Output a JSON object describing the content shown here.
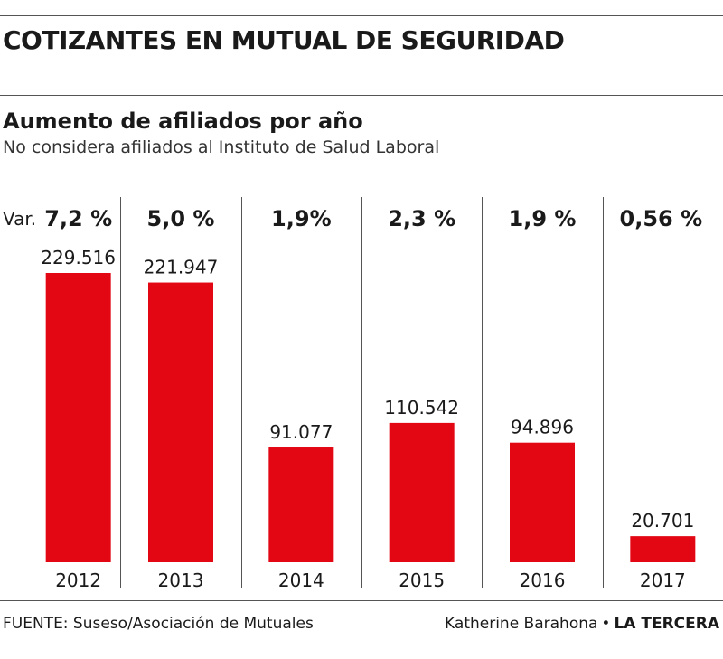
{
  "header": {
    "title": "COTIZANTES EN MUTUAL DE SEGURIDAD",
    "subtitle": "Aumento de afiliados por año",
    "note": "No considera afiliados al Instituto de Salud Laboral"
  },
  "footer": {
    "source": "FUENTE: Suseso/Asociación de Mutuales",
    "author": "Katherine Barahona",
    "bullet": "•",
    "publication": "LA TERCERA"
  },
  "colors": {
    "bar": "#e30613",
    "divider": "#555555",
    "text": "#1a1a1a"
  },
  "chart_data": {
    "type": "bar",
    "title": "Aumento de afiliados por año",
    "subtitle": "No considera afiliados al Instituto de Salud Laboral",
    "variation_prefix": "Var.",
    "categories": [
      "2012",
      "2013",
      "2014",
      "2015",
      "2016",
      "2017"
    ],
    "values": [
      229516,
      221947,
      91077,
      110542,
      94896,
      20701
    ],
    "value_labels": [
      "229.516",
      "221.947",
      "91.077",
      "110.542",
      "94.896",
      "20.701"
    ],
    "variation_labels": [
      "7,2 %",
      "5,0 %",
      "1,9%",
      "2,3 %",
      "1,9 %",
      "0,56 %"
    ],
    "ylim": [
      0,
      229516
    ],
    "grid": false,
    "legend": "none"
  }
}
